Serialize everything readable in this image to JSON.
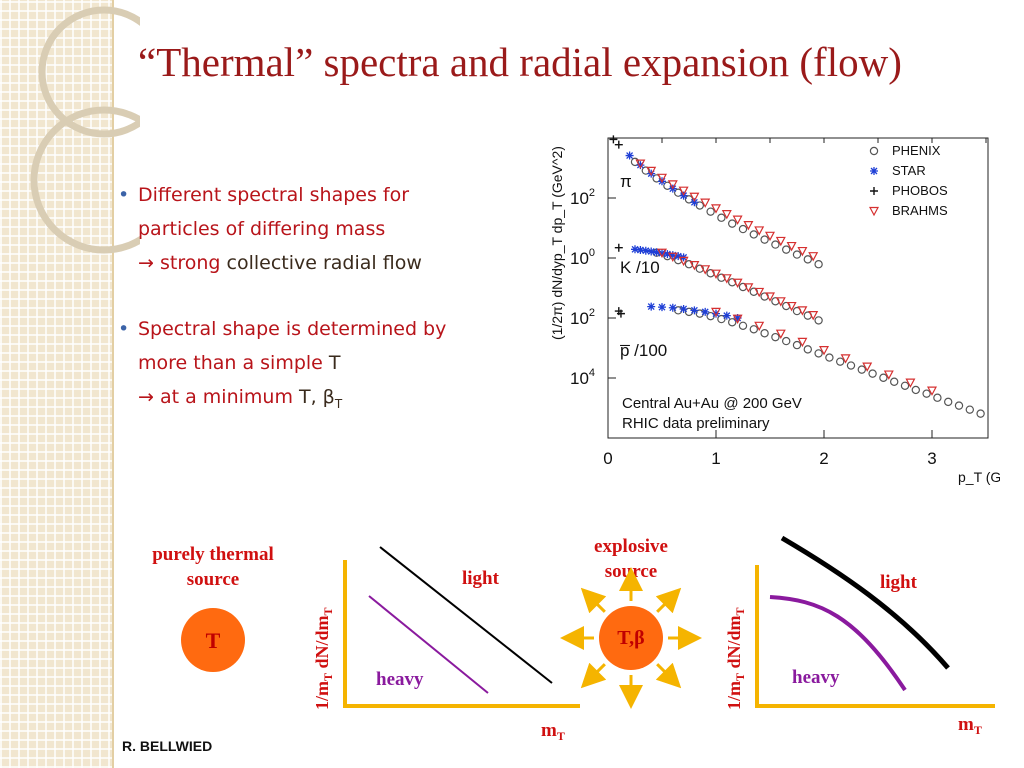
{
  "slide": {
    "title": "“Thermal” spectra and radial expansion (flow)",
    "author": "R. BELLWIED"
  },
  "bullets": [
    {
      "line1": "Different spectral shapes for",
      "line2": "particles of differing mass",
      "arrow": "→",
      "emph": "strong",
      "rest": "collective radial flow"
    },
    {
      "line1": "Spectral shape is determined by",
      "line2": "more than a simple",
      "line2_T": "T",
      "arrow": "→",
      "prefix": "at a minimum",
      "tail": "T, β",
      "tail_sub": "T"
    }
  ],
  "diagram_left": {
    "source_label_1": "purely thermal",
    "source_label_2": "source",
    "ball_label": "T",
    "ylabel_main": "1/m",
    "ylabel_sub": "T",
    "ylabel_tail": " dN/dm",
    "ylabel_sub2": "T",
    "xlabel_main": "m",
    "xlabel_sub": "T",
    "light": "light",
    "heavy": "heavy"
  },
  "diagram_right": {
    "source_label_1": "explosive",
    "source_label_2": "source",
    "ball_label": "T,β",
    "ylabel_main": "1/m",
    "ylabel_sub": "T",
    "ylabel_tail": " dN/dm",
    "ylabel_sub2": "T",
    "xlabel_main": "m",
    "xlabel_sub": "T",
    "light": "light",
    "heavy": "heavy"
  },
  "colors": {
    "title": "#9a1a1a",
    "bullet_text": "#b8141a",
    "axis_orange": "#f5b400",
    "ball_orange": "#ff6a10",
    "heavy_purple": "#8a1a9e",
    "label_red": "#d01010",
    "phenix": "#555555",
    "star": "#1f3fd6",
    "brahms": "#d63030"
  },
  "chart_data": {
    "type": "scatter",
    "ylabel": "(1/2π) dN/dyp_T dp_T (GeV^2)",
    "xlabel": "p_T (GeV/c)",
    "xticks": [
      "0",
      "1",
      "2",
      "3"
    ],
    "yticks": [
      "10^2",
      "10^0",
      "10^2",
      "10^4"
    ],
    "xlim": [
      0,
      3.5
    ],
    "ylog": true,
    "legend": [
      "PHENIX",
      "STAR",
      "PHOBOS",
      "BRAHMS"
    ],
    "legend_position": "top-right",
    "group_labels": [
      "π",
      "K /10",
      "p̅ /100"
    ],
    "annotation": [
      "Central Au+Au @ 200 GeV",
      "RHIC data preliminary"
    ],
    "groups": [
      {
        "name": "π",
        "series": [
          {
            "name": "PHENIX",
            "x": [
              0.25,
              0.35,
              0.45,
              0.55,
              0.65,
              0.75,
              0.85,
              0.95,
              1.05,
              1.15,
              1.25,
              1.35,
              1.45,
              1.55,
              1.65,
              1.75,
              1.85,
              1.95
            ],
            "y": [
              1600,
              820,
              450,
              255,
              150,
              90,
              56,
              35,
              22,
              14,
              9.2,
              6.1,
              4.1,
              2.8,
              1.9,
              1.3,
              0.9,
              0.62
            ]
          },
          {
            "name": "STAR",
            "x": [
              0.2,
              0.3,
              0.4,
              0.5,
              0.6,
              0.7,
              0.8
            ],
            "y": [
              2600,
              1250,
              650,
              360,
              205,
              120,
              72
            ]
          },
          {
            "name": "PHOBOS",
            "x": [
              0.05,
              0.1
            ],
            "y": [
              9000,
              6000
            ]
          },
          {
            "name": "BRAHMS",
            "x": [
              0.3,
              0.4,
              0.5,
              0.6,
              0.7,
              0.8,
              0.9,
              1.0,
              1.1,
              1.2,
              1.3,
              1.4,
              1.5,
              1.6,
              1.7,
              1.8,
              1.9
            ],
            "y": [
              1400,
              800,
              470,
              285,
              175,
              110,
              70,
              45,
              29,
              19,
              12.5,
              8.3,
              5.5,
              3.7,
              2.5,
              1.7,
              1.15
            ]
          }
        ]
      },
      {
        "name": "K /10",
        "series": [
          {
            "name": "PHENIX",
            "x": [
              0.45,
              0.55,
              0.65,
              0.75,
              0.85,
              0.95,
              1.05,
              1.15,
              1.25,
              1.35,
              1.45,
              1.55,
              1.65,
              1.75,
              1.85,
              1.95
            ],
            "y": [
              1.5,
              1.15,
              0.85,
              0.62,
              0.44,
              0.31,
              0.22,
              0.155,
              0.108,
              0.075,
              0.052,
              0.036,
              0.025,
              0.017,
              0.012,
              0.0083
            ]
          },
          {
            "name": "STAR",
            "x": [
              0.25,
              0.3,
              0.35,
              0.4,
              0.45,
              0.5,
              0.55,
              0.6,
              0.65,
              0.7
            ],
            "y": [
              1.95,
              1.85,
              1.75,
              1.65,
              1.55,
              1.45,
              1.35,
              1.25,
              1.15,
              1.05
            ]
          },
          {
            "name": "PHOBOS",
            "x": [
              0.1
            ],
            "y": [
              2.2
            ]
          },
          {
            "name": "BRAHMS",
            "x": [
              0.5,
              0.6,
              0.7,
              0.8,
              0.9,
              1.0,
              1.1,
              1.2,
              1.3,
              1.4,
              1.5,
              1.6,
              1.7,
              1.8,
              1.9
            ],
            "y": [
              1.5,
              1.1,
              0.8,
              0.58,
              0.42,
              0.3,
              0.21,
              0.15,
              0.105,
              0.074,
              0.052,
              0.036,
              0.025,
              0.018,
              0.0125
            ]
          }
        ]
      },
      {
        "name": "p̅ /100",
        "series": [
          {
            "name": "PHENIX",
            "x": [
              0.65,
              0.75,
              0.85,
              0.95,
              1.05,
              1.15,
              1.25,
              1.35,
              1.45,
              1.55,
              1.65,
              1.75,
              1.85,
              1.95,
              2.05,
              2.15,
              2.25,
              2.35,
              2.45,
              2.55,
              2.65,
              2.75,
              2.85,
              2.95,
              3.05,
              3.15,
              3.25,
              3.35,
              3.45
            ],
            "y": [
              0.018,
              0.016,
              0.014,
              0.0115,
              0.0092,
              0.0072,
              0.0055,
              0.0042,
              0.0031,
              0.0023,
              0.0017,
              0.00125,
              0.0009,
              0.00066,
              0.00048,
              0.00035,
              0.00026,
              0.00019,
              0.00014,
              0.000102,
              7.5e-05,
              5.5e-05,
              4e-05,
              3e-05,
              2.2e-05,
              1.6e-05,
              1.2e-05,
              8.8e-06,
              6.5e-06
            ]
          },
          {
            "name": "STAR",
            "x": [
              0.4,
              0.5,
              0.6,
              0.7,
              0.8,
              0.9,
              1.0,
              1.1,
              1.2
            ],
            "y": [
              0.024,
              0.023,
              0.022,
              0.02,
              0.018,
              0.016,
              0.014,
              0.012,
              0.01
            ]
          },
          {
            "name": "PHOBOS",
            "x": [
              0.1,
              0.12
            ],
            "y": [
              0.017,
              0.014
            ]
          },
          {
            "name": "BRAHMS",
            "x": [
              1.0,
              1.2,
              1.4,
              1.6,
              1.8,
              2.0,
              2.2,
              2.4,
              2.6,
              2.8,
              3.0
            ],
            "y": [
              0.016,
              0.0095,
              0.0055,
              0.003,
              0.0016,
              0.00085,
              0.00045,
              0.00024,
              0.00013,
              7e-05,
              3.8e-05
            ]
          }
        ]
      }
    ]
  }
}
